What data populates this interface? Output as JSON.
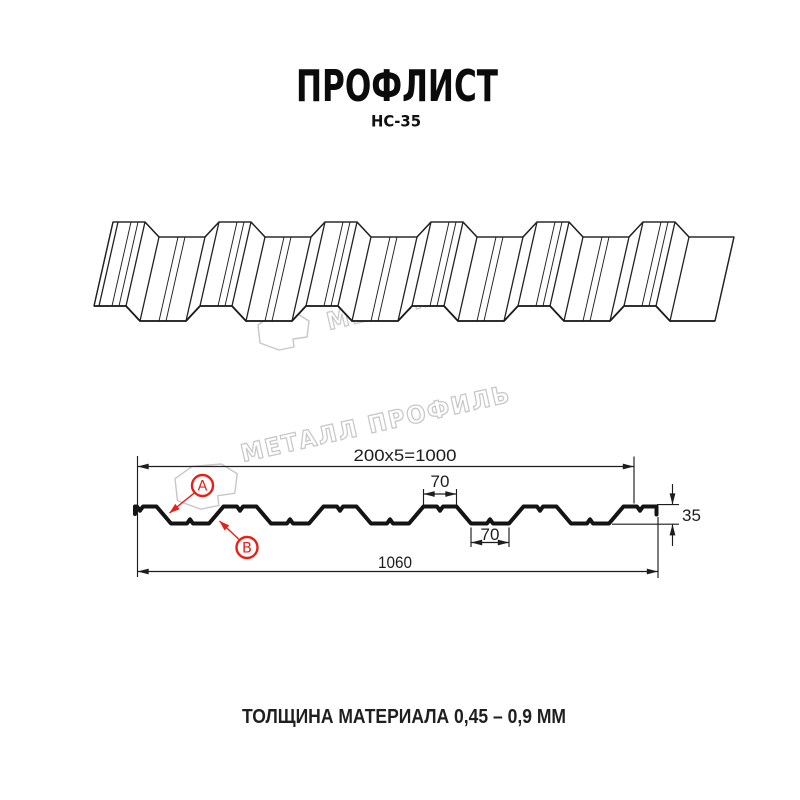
{
  "page": {
    "title": "ПРОФЛИСТ",
    "subtitle": "НС-35",
    "footer_note": "ТОЛЩИНА МАТЕРИАЛА 0,45 – 0,9 ММ"
  },
  "watermark": {
    "brand": "МЕТАЛЛ ПРОФИЛЬ"
  },
  "cross_section": {
    "dimensions": {
      "pitch_total": "200x5=1000",
      "crest_width": "70",
      "valley_width": "70",
      "profile_height": "35",
      "overall_width": "1060"
    },
    "callouts": {
      "side_a": "А",
      "side_b": "В"
    }
  },
  "colors": {
    "line": "#1d1d1d",
    "profile_black": "#141414",
    "accent_red": "#e62017",
    "watermark_gray": "#c7c7c7"
  }
}
